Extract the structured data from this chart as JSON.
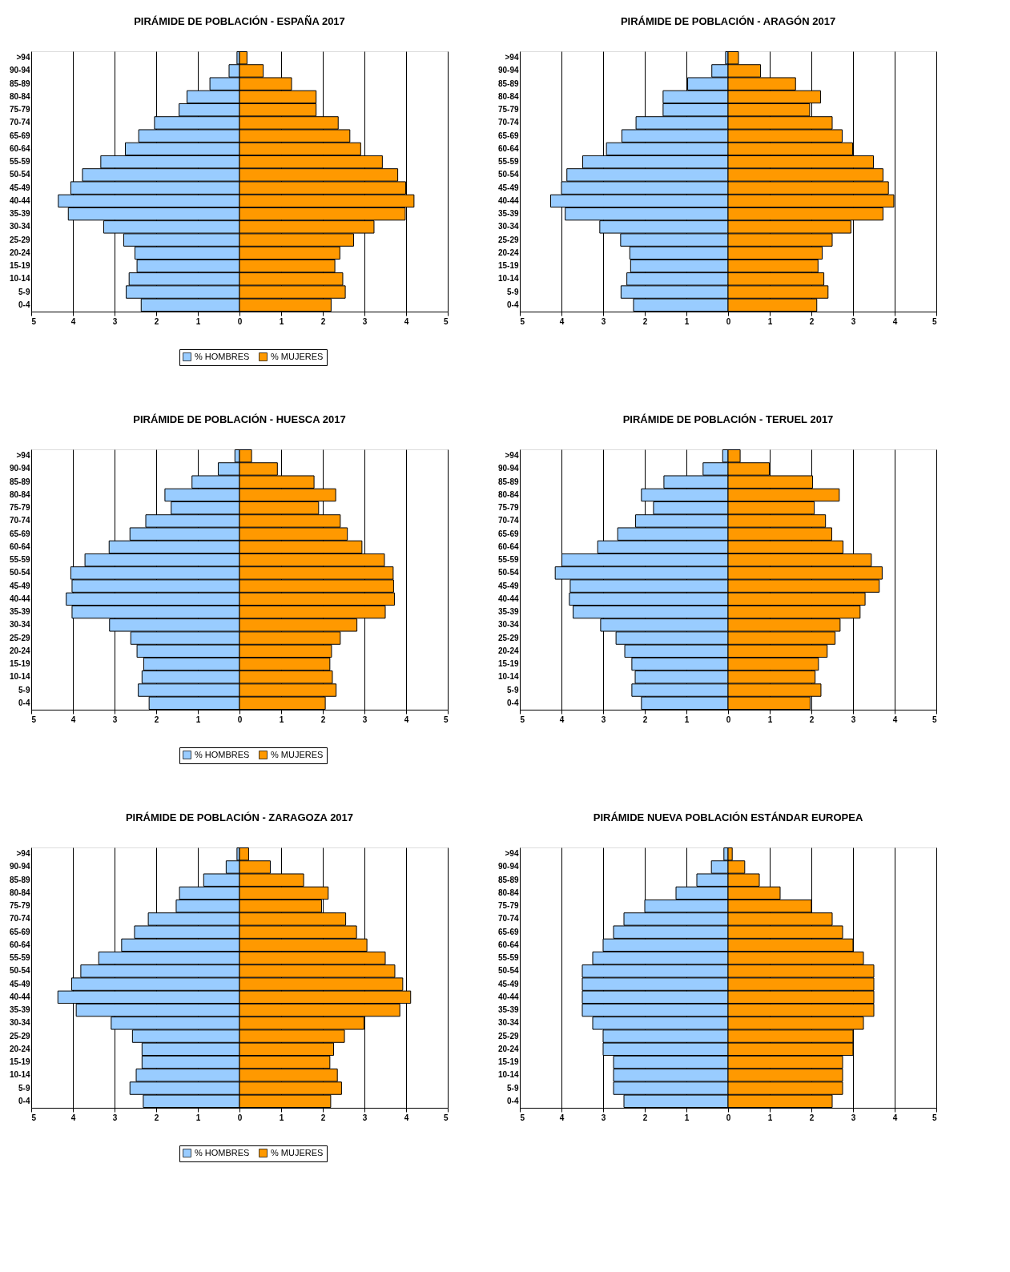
{
  "chart_data": [
    {
      "type": "bar",
      "orientation": "horizontal",
      "stacked": true,
      "title": "PIRÁMIDE DE POBLACIÓN -  ESPAÑA 2017",
      "categories": [
        ">94",
        "90-94",
        "85-89",
        "80-84",
        "75-79",
        "70-74",
        "65-69",
        "60-64",
        "55-59",
        "50-54",
        "45-49",
        "40-44",
        "35-39",
        "30-34",
        "25-29",
        "20-24",
        "15-19",
        "10-14",
        "5-9",
        "0-4"
      ],
      "series": [
        {
          "name": "% HOMBRES",
          "color": "#99ccff",
          "values": [
            -0.06,
            -0.25,
            -0.71,
            -1.26,
            -1.45,
            -2.04,
            -2.42,
            -2.74,
            -3.33,
            -3.77,
            -4.05,
            -4.35,
            -4.11,
            -3.26,
            -2.78,
            -2.51,
            -2.46,
            -2.65,
            -2.72,
            -2.36
          ]
        },
        {
          "name": "% MUJERES",
          "color": "#ff9900",
          "values": [
            0.18,
            0.57,
            1.25,
            1.84,
            1.84,
            2.37,
            2.65,
            2.91,
            3.43,
            3.8,
            3.99,
            4.19,
            3.98,
            3.23,
            2.74,
            2.41,
            2.29,
            2.48,
            2.54,
            2.2
          ]
        }
      ],
      "xlim": [
        -5,
        5
      ],
      "xticks": [
        {
          "value": -5,
          "label": "5"
        },
        {
          "value": -4,
          "label": "4"
        },
        {
          "value": -3,
          "label": "3"
        },
        {
          "value": -2,
          "label": "2"
        },
        {
          "value": -1,
          "label": "1"
        },
        0,
        1,
        2,
        3,
        4,
        5
      ],
      "grid": "x",
      "legend": "bottom"
    },
    {
      "type": "bar",
      "orientation": "horizontal",
      "stacked": true,
      "title": "PIRÁMIDE DE POBLACIÓN -  ARAGÓN 2017",
      "categories": [
        ">94",
        "90-94",
        "85-89",
        "80-84",
        "75-79",
        "70-74",
        "65-69",
        "60-64",
        "55-59",
        "50-54",
        "45-49",
        "40-44",
        "35-39",
        "30-34",
        "25-29",
        "20-24",
        "15-19",
        "10-14",
        "5-9",
        "0-4"
      ],
      "series": [
        {
          "name": "% HOMBRES",
          "color": "#99ccff",
          "values": [
            -0.06,
            -0.39,
            -0.97,
            -1.56,
            -1.56,
            -2.21,
            -2.55,
            -2.92,
            -3.49,
            -3.87,
            -4.0,
            -4.26,
            -3.91,
            -3.08,
            -2.58,
            -2.36,
            -2.34,
            -2.43,
            -2.57,
            -2.27
          ]
        },
        {
          "name": "% MUJERES",
          "color": "#ff9900",
          "values": [
            0.25,
            0.78,
            1.62,
            2.22,
            1.96,
            2.5,
            2.74,
            2.99,
            3.49,
            3.72,
            3.85,
            3.98,
            3.72,
            2.95,
            2.5,
            2.26,
            2.16,
            2.3,
            2.4,
            2.13
          ]
        }
      ],
      "xlim": [
        -5,
        5
      ],
      "xticks": [
        {
          "value": -5,
          "label": "5"
        },
        {
          "value": -4,
          "label": "4"
        },
        {
          "value": -3,
          "label": "3"
        },
        {
          "value": -2,
          "label": "2"
        },
        {
          "value": -1,
          "label": "1"
        },
        0,
        1,
        2,
        3,
        4,
        5
      ],
      "grid": "x",
      "legend": "bottom"
    },
    {
      "type": "bar",
      "orientation": "horizontal",
      "stacked": true,
      "title": "PIRÁMIDE DE POBLACIÓN -  HUESCA 2017",
      "categories": [
        ">94",
        "90-94",
        "85-89",
        "80-84",
        "75-79",
        "70-74",
        "65-69",
        "60-64",
        "55-59",
        "50-54",
        "45-49",
        "40-44",
        "35-39",
        "30-34",
        "25-29",
        "20-24",
        "15-19",
        "10-14",
        "5-9",
        "0-4"
      ],
      "series": [
        {
          "name": "% HOMBRES",
          "color": "#99ccff",
          "values": [
            -0.11,
            -0.51,
            -1.14,
            -1.79,
            -1.64,
            -2.25,
            -2.63,
            -3.13,
            -3.71,
            -4.05,
            -4.02,
            -4.16,
            -4.02,
            -3.12,
            -2.61,
            -2.46,
            -2.3,
            -2.34,
            -2.43,
            -2.17
          ]
        },
        {
          "name": "% MUJERES",
          "color": "#ff9900",
          "values": [
            0.29,
            0.91,
            1.79,
            2.31,
            1.9,
            2.42,
            2.59,
            2.94,
            3.48,
            3.69,
            3.7,
            3.72,
            3.5,
            2.82,
            2.42,
            2.21,
            2.17,
            2.23,
            2.32,
            2.06
          ]
        }
      ],
      "xlim": [
        -5,
        5
      ],
      "xticks": [
        {
          "value": -5,
          "label": "5"
        },
        {
          "value": -4,
          "label": "4"
        },
        {
          "value": -3,
          "label": "3"
        },
        {
          "value": -2,
          "label": "2"
        },
        {
          "value": -1,
          "label": "1"
        },
        0,
        1,
        2,
        3,
        4,
        5
      ],
      "grid": "x",
      "legend": "bottom"
    },
    {
      "type": "bar",
      "orientation": "horizontal",
      "stacked": true,
      "title": "PIRÁMIDE DE POBLACIÓN -  TERUEL 2017",
      "categories": [
        ">94",
        "90-94",
        "85-89",
        "80-84",
        "75-79",
        "70-74",
        "65-69",
        "60-64",
        "55-59",
        "50-54",
        "45-49",
        "40-44",
        "35-39",
        "30-34",
        "25-29",
        "20-24",
        "15-19",
        "10-14",
        "5-9",
        "0-4"
      ],
      "series": [
        {
          "name": "% HOMBRES",
          "color": "#99ccff",
          "values": [
            -0.13,
            -0.6,
            -1.54,
            -2.08,
            -1.79,
            -2.22,
            -2.65,
            -3.13,
            -3.99,
            -4.15,
            -3.79,
            -3.81,
            -3.72,
            -3.06,
            -2.69,
            -2.48,
            -2.31,
            -2.23,
            -2.31,
            -2.08
          ]
        },
        {
          "name": "% MUJERES",
          "color": "#ff9900",
          "values": [
            0.29,
            0.99,
            2.03,
            2.67,
            2.07,
            2.34,
            2.49,
            2.76,
            3.44,
            3.7,
            3.63,
            3.29,
            3.17,
            2.69,
            2.57,
            2.38,
            2.17,
            2.09,
            2.23,
            1.97
          ]
        }
      ],
      "xlim": [
        -5,
        5
      ],
      "xticks": [
        {
          "value": -5,
          "label": "5"
        },
        {
          "value": -4,
          "label": "4"
        },
        {
          "value": -3,
          "label": "3"
        },
        {
          "value": -2,
          "label": "2"
        },
        {
          "value": -1,
          "label": "1"
        },
        0,
        1,
        2,
        3,
        4,
        5
      ],
      "grid": "x",
      "legend": "bottom"
    },
    {
      "type": "bar",
      "orientation": "horizontal",
      "stacked": true,
      "title": "PIRÁMIDE DE POBLACIÓN -  ZARAGOZA 2017",
      "categories": [
        ">94",
        "90-94",
        "85-89",
        "80-84",
        "75-79",
        "70-74",
        "65-69",
        "60-64",
        "55-59",
        "50-54",
        "45-49",
        "40-44",
        "35-39",
        "30-34",
        "25-29",
        "20-24",
        "15-19",
        "10-14",
        "5-9",
        "0-4"
      ],
      "series": [
        {
          "name": "% HOMBRES",
          "color": "#99ccff",
          "values": [
            -0.06,
            -0.32,
            -0.86,
            -1.44,
            -1.52,
            -2.19,
            -2.52,
            -2.83,
            -3.38,
            -3.81,
            -4.03,
            -4.36,
            -3.92,
            -3.08,
            -2.57,
            -2.34,
            -2.34,
            -2.48,
            -2.63,
            -2.31
          ]
        },
        {
          "name": "% MUJERES",
          "color": "#ff9900",
          "values": [
            0.22,
            0.74,
            1.54,
            2.13,
            1.97,
            2.55,
            2.81,
            3.06,
            3.5,
            3.73,
            3.92,
            4.11,
            3.85,
            2.99,
            2.52,
            2.26,
            2.17,
            2.35,
            2.45,
            2.19
          ]
        }
      ],
      "xlim": [
        -5,
        5
      ],
      "xticks": [
        {
          "value": -5,
          "label": "5"
        },
        {
          "value": -4,
          "label": "4"
        },
        {
          "value": -3,
          "label": "3"
        },
        {
          "value": -2,
          "label": "2"
        },
        {
          "value": -1,
          "label": "1"
        },
        0,
        1,
        2,
        3,
        4,
        5
      ],
      "grid": "x",
      "legend": "bottom"
    },
    {
      "type": "bar",
      "orientation": "horizontal",
      "stacked": true,
      "title": "PIRÁMIDE NUEVA POBLACIÓN ESTÁNDAR EUROPEA",
      "categories": [
        ">94",
        "90-94",
        "85-89",
        "80-84",
        "75-79",
        "70-74",
        "65-69",
        "60-64",
        "55-59",
        "50-54",
        "45-49",
        "40-44",
        "35-39",
        "30-34",
        "25-29",
        "20-24",
        "15-19",
        "10-14",
        "5-9",
        "0-4"
      ],
      "series": [
        {
          "name": "% HOMBRES",
          "color": "#99ccff",
          "values": [
            -0.1,
            -0.4,
            -0.75,
            -1.25,
            -2.0,
            -2.5,
            -2.75,
            -3.0,
            -3.25,
            -3.5,
            -3.5,
            -3.5,
            -3.5,
            -3.25,
            -3.0,
            -3.0,
            -2.75,
            -2.75,
            -2.75,
            -2.5
          ]
        },
        {
          "name": "% MUJERES",
          "color": "#ff9900",
          "values": [
            0.1,
            0.4,
            0.75,
            1.25,
            2.0,
            2.5,
            2.75,
            3.0,
            3.25,
            3.5,
            3.5,
            3.5,
            3.5,
            3.25,
            3.0,
            3.0,
            2.75,
            2.75,
            2.75,
            2.5
          ]
        }
      ],
      "xlim": [
        -5,
        5
      ],
      "xticks": [
        {
          "value": -5,
          "label": "5"
        },
        {
          "value": -4,
          "label": "4"
        },
        {
          "value": -3,
          "label": "3"
        },
        {
          "value": -2,
          "label": "2"
        },
        {
          "value": -1,
          "label": "1"
        },
        0,
        1,
        2,
        3,
        4,
        5
      ],
      "grid": "x",
      "legend": "bottom"
    }
  ]
}
